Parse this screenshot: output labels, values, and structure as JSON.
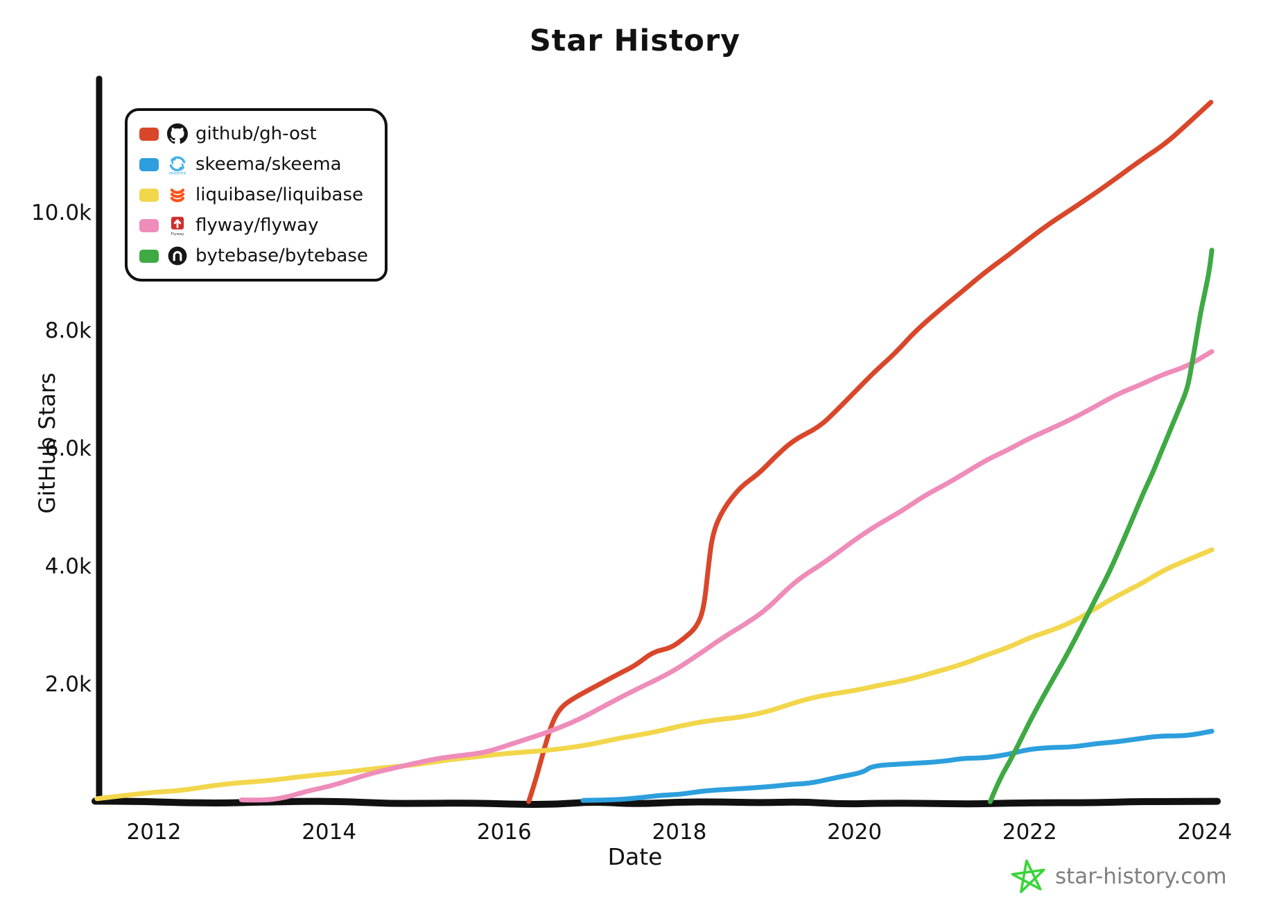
{
  "chart_data": {
    "type": "line",
    "title": "Star History",
    "xlabel": "Date",
    "ylabel": "GitHub Stars",
    "grid": false,
    "legend_position": "top-left",
    "xlim": [
      2011.3,
      2024.2
    ],
    "ylim": [
      0,
      12200
    ],
    "x_ticks": [
      {
        "v": 2012,
        "label": "2012"
      },
      {
        "v": 2014,
        "label": "2014"
      },
      {
        "v": 2016,
        "label": "2016"
      },
      {
        "v": 2018,
        "label": "2018"
      },
      {
        "v": 2020,
        "label": "2020"
      },
      {
        "v": 2022,
        "label": "2022"
      },
      {
        "v": 2024,
        "label": "2024"
      }
    ],
    "y_ticks": [
      {
        "v": 2000,
        "label": "2.0k"
      },
      {
        "v": 4000,
        "label": "4.0k"
      },
      {
        "v": 6000,
        "label": "6.0k"
      },
      {
        "v": 8000,
        "label": "8.0k"
      },
      {
        "v": 10000,
        "label": "10.0k"
      }
    ],
    "series": [
      {
        "name": "github/gh-ost",
        "color": "#d9472b",
        "icon": "github-icon",
        "points": [
          [
            2016.28,
            0
          ],
          [
            2016.35,
            350
          ],
          [
            2016.45,
            900
          ],
          [
            2016.55,
            1400
          ],
          [
            2016.65,
            1650
          ],
          [
            2016.8,
            1800
          ],
          [
            2017.0,
            1950
          ],
          [
            2017.3,
            2200
          ],
          [
            2017.5,
            2350
          ],
          [
            2017.7,
            2550
          ],
          [
            2017.9,
            2650
          ],
          [
            2018.05,
            2800
          ],
          [
            2018.2,
            3000
          ],
          [
            2018.28,
            3300
          ],
          [
            2018.33,
            4000
          ],
          [
            2018.38,
            4600
          ],
          [
            2018.5,
            5000
          ],
          [
            2018.7,
            5350
          ],
          [
            2018.9,
            5600
          ],
          [
            2019.1,
            5900
          ],
          [
            2019.3,
            6150
          ],
          [
            2019.6,
            6400
          ],
          [
            2020.0,
            6950
          ],
          [
            2020.7,
            8000
          ],
          [
            2021.0,
            8400
          ],
          [
            2022.0,
            9600
          ],
          [
            2023.0,
            10600
          ],
          [
            2023.55,
            11200
          ],
          [
            2024.07,
            11900
          ]
        ]
      },
      {
        "name": "skeema/skeema",
        "color": "#2d9fdd",
        "icon": "skeema-icon",
        "points": [
          [
            2016.9,
            20
          ],
          [
            2017.3,
            50
          ],
          [
            2017.6,
            80
          ],
          [
            2017.8,
            130
          ],
          [
            2018.0,
            150
          ],
          [
            2018.3,
            190
          ],
          [
            2018.6,
            220
          ],
          [
            2019.0,
            280
          ],
          [
            2019.3,
            330
          ],
          [
            2019.5,
            350
          ],
          [
            2019.8,
            420
          ],
          [
            2020.1,
            500
          ],
          [
            2020.2,
            630
          ],
          [
            2020.6,
            680
          ],
          [
            2021.0,
            720
          ],
          [
            2021.5,
            780
          ],
          [
            2022.0,
            900
          ],
          [
            2022.5,
            970
          ],
          [
            2023.0,
            1050
          ],
          [
            2023.5,
            1120
          ],
          [
            2024.08,
            1200
          ]
        ]
      },
      {
        "name": "liquibase/liquibase",
        "color": "#f2d64b",
        "icon": "liquibase-icon",
        "points": [
          [
            2011.35,
            50
          ],
          [
            2012.0,
            180
          ],
          [
            2013.0,
            340
          ],
          [
            2014.0,
            500
          ],
          [
            2015.0,
            650
          ],
          [
            2016.0,
            820
          ],
          [
            2017.0,
            1000
          ],
          [
            2018.0,
            1300
          ],
          [
            2019.0,
            1550
          ],
          [
            2019.5,
            1760
          ],
          [
            2020.0,
            1900
          ],
          [
            2020.6,
            2070
          ],
          [
            2021.0,
            2250
          ],
          [
            2021.5,
            2500
          ],
          [
            2022.0,
            2800
          ],
          [
            2022.5,
            3100
          ],
          [
            2023.0,
            3500
          ],
          [
            2023.55,
            3950
          ],
          [
            2024.08,
            4300
          ]
        ]
      },
      {
        "name": "flyway/flyway",
        "color": "#ee8cba",
        "icon": "flyway-icon",
        "points": [
          [
            2013.0,
            30
          ],
          [
            2013.5,
            100
          ],
          [
            2014.0,
            300
          ],
          [
            2014.5,
            500
          ],
          [
            2015.0,
            680
          ],
          [
            2015.8,
            880
          ],
          [
            2016.5,
            1200
          ],
          [
            2016.85,
            1400
          ],
          [
            2017.5,
            1900
          ],
          [
            2017.9,
            2200
          ],
          [
            2018.5,
            2800
          ],
          [
            2019.0,
            3300
          ],
          [
            2019.32,
            3740
          ],
          [
            2019.66,
            4100
          ],
          [
            2020.0,
            4450
          ],
          [
            2020.8,
            5230
          ],
          [
            2021.1,
            5450
          ],
          [
            2021.5,
            5800
          ],
          [
            2022.0,
            6200
          ],
          [
            2022.6,
            6600
          ],
          [
            2023.0,
            6950
          ],
          [
            2023.8,
            7430
          ],
          [
            2024.08,
            7650
          ]
        ]
      },
      {
        "name": "bytebase/bytebase",
        "color": "#3fa944",
        "icon": "bytebase-icon",
        "points": [
          [
            2021.55,
            0
          ],
          [
            2021.65,
            400
          ],
          [
            2021.8,
            800
          ],
          [
            2022.0,
            1400
          ],
          [
            2022.3,
            2200
          ],
          [
            2022.6,
            3000
          ],
          [
            2022.9,
            3900
          ],
          [
            2023.2,
            4900
          ],
          [
            2023.4,
            5600
          ],
          [
            2023.6,
            6300
          ],
          [
            2023.8,
            7000
          ],
          [
            2023.95,
            8300
          ],
          [
            2024.05,
            9000
          ],
          [
            2024.08,
            9360
          ]
        ]
      }
    ]
  },
  "watermark": {
    "text": "star-history.com",
    "star_color": "#3bd43b",
    "text_color": "#7f7f7f"
  },
  "style": {
    "axis_color": "#111111",
    "background": "#ffffff"
  }
}
